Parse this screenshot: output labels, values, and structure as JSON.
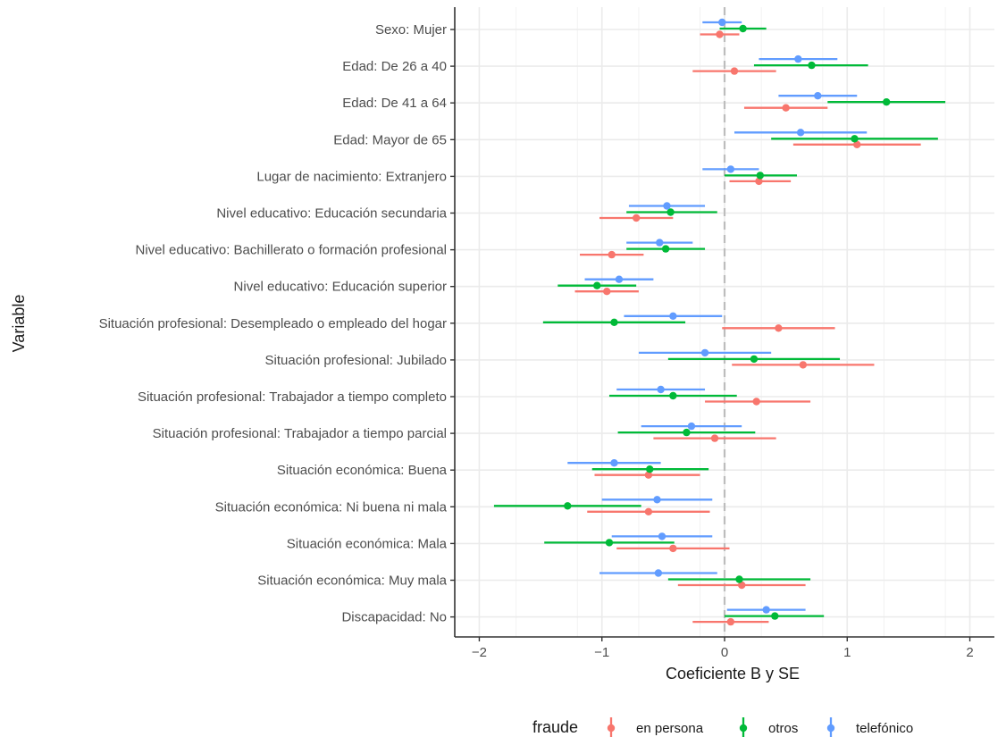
{
  "chart_data": {
    "type": "scatter",
    "subtype": "coefficient-plot-with-error-bars",
    "xlabel": "Coeficiente B y SE",
    "ylabel": "Variable",
    "xlim": [
      -2.2,
      2.2
    ],
    "x_ticks": [
      -2,
      -1,
      0,
      1,
      2
    ],
    "x_tick_labels": [
      "−2",
      "−1",
      "0",
      "1",
      "2"
    ],
    "reference_line_x": 0,
    "grid": true,
    "legend_position": "bottom",
    "legend_title": "fraude",
    "categories": [
      "Sexo: Mujer",
      "Edad: De 26 a 40",
      "Edad: De 41 a 64",
      "Edad: Mayor de 65",
      "Lugar de nacimiento: Extranjero",
      "Nivel educativo: Educación secundaria",
      "Nivel educativo: Bachillerato o formación profesional",
      "Nivel educativo: Educación superior",
      "Situación profesional: Desempleado o empleado del hogar",
      "Situación profesional: Jubilado",
      "Situación profesional: Trabajador a tiempo completo",
      "Situación profesional: Trabajador a tiempo parcial",
      "Situación económica: Buena",
      "Situación económica: Ni buena ni mala",
      "Situación económica: Mala",
      "Situación económica: Muy mala",
      "Discapacidad: No"
    ],
    "series": [
      {
        "name": "en persona",
        "color": "#F8766D",
        "estimate": [
          -0.04,
          0.08,
          0.5,
          1.08,
          0.28,
          -0.72,
          -0.92,
          -0.96,
          0.44,
          0.64,
          0.26,
          -0.08,
          -0.62,
          -0.62,
          -0.42,
          0.14,
          0.05
        ],
        "lower": [
          -0.2,
          -0.26,
          0.16,
          0.56,
          0.04,
          -1.02,
          -1.18,
          -1.22,
          -0.02,
          0.06,
          -0.16,
          -0.58,
          -1.06,
          -1.12,
          -0.88,
          -0.38,
          -0.26
        ],
        "upper": [
          0.12,
          0.42,
          0.84,
          1.6,
          0.54,
          -0.42,
          -0.66,
          -0.7,
          0.9,
          1.22,
          0.7,
          0.42,
          -0.2,
          -0.12,
          0.04,
          0.66,
          0.36
        ]
      },
      {
        "name": "otros",
        "color": "#00BA38",
        "estimate": [
          0.15,
          0.71,
          1.32,
          1.06,
          0.29,
          -0.44,
          -0.48,
          -1.04,
          -0.9,
          0.24,
          -0.42,
          -0.31,
          -0.61,
          -1.28,
          -0.94,
          0.12,
          0.41
        ],
        "lower": [
          -0.04,
          0.24,
          0.84,
          0.38,
          0.0,
          -0.8,
          -0.8,
          -1.36,
          -1.48,
          -0.46,
          -0.94,
          -0.87,
          -1.08,
          -1.88,
          -1.47,
          -0.46,
          0.0
        ],
        "upper": [
          0.34,
          1.17,
          1.8,
          1.74,
          0.59,
          -0.06,
          -0.16,
          -0.72,
          -0.32,
          0.94,
          0.1,
          0.25,
          -0.13,
          -0.68,
          -0.41,
          0.7,
          0.81
        ]
      },
      {
        "name": "telefónico",
        "color": "#619CFF",
        "estimate": [
          -0.02,
          0.6,
          0.76,
          0.62,
          0.05,
          -0.47,
          -0.53,
          -0.86,
          -0.42,
          -0.16,
          -0.52,
          -0.27,
          -0.9,
          -0.55,
          -0.51,
          -0.54,
          0.34
        ],
        "lower": [
          -0.18,
          0.28,
          0.44,
          0.08,
          -0.18,
          -0.78,
          -0.8,
          -1.14,
          -0.82,
          -0.7,
          -0.88,
          -0.68,
          -1.28,
          -1.0,
          -0.92,
          -1.02,
          0.02
        ],
        "upper": [
          0.14,
          0.92,
          1.08,
          1.16,
          0.28,
          -0.16,
          -0.26,
          -0.58,
          -0.02,
          0.38,
          -0.16,
          0.14,
          -0.52,
          -0.1,
          -0.1,
          -0.06,
          0.66
        ]
      }
    ]
  }
}
